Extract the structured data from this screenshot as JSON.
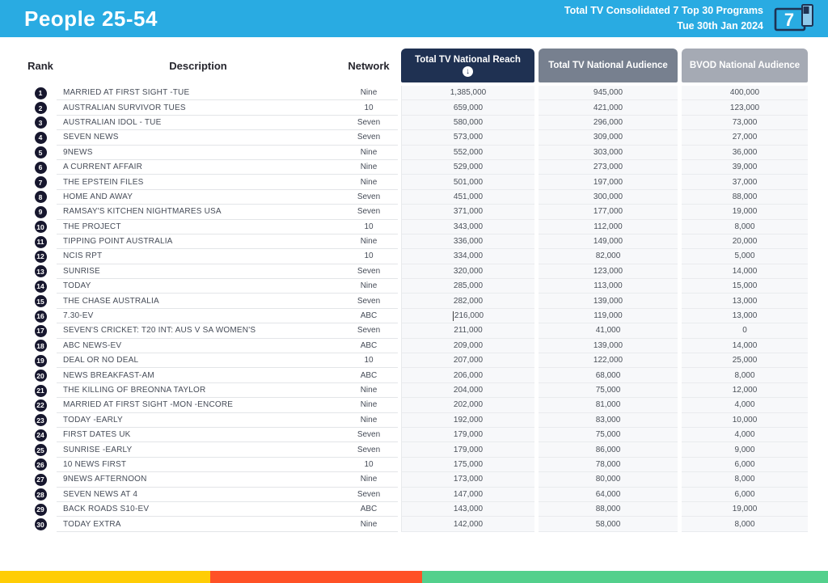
{
  "header": {
    "title": "People 25-54",
    "subtitle_line1": "Total TV Consolidated 7 Top 30 Programs",
    "subtitle_line2": "Tue 30th Jan 2024",
    "logo_digit": "7"
  },
  "colors": {
    "topbar": "#29ABE2",
    "reach_header_bg": "#1F3152",
    "audience_header_bg": "#77808F",
    "bvod_header_bg": "#A5AAB4",
    "stripe_yellow": "#FFCD05",
    "stripe_red": "#FF5126",
    "stripe_green": "#53D08C"
  },
  "table": {
    "columns": {
      "rank": "Rank",
      "description": "Description",
      "network": "Network",
      "reach": "Total TV National Reach",
      "audience": "Total TV National Audience",
      "bvod": "BVOD National Audience"
    },
    "sort_icon": "circle-arrow-down",
    "caret_row_index": 15,
    "rows": [
      {
        "rank": "1",
        "description": "MARRIED AT FIRST SIGHT -TUE",
        "network": "Nine",
        "reach": "1,385,000",
        "audience": "945,000",
        "bvod": "400,000"
      },
      {
        "rank": "2",
        "description": "AUSTRALIAN SURVIVOR TUES",
        "network": "10",
        "reach": "659,000",
        "audience": "421,000",
        "bvod": "123,000"
      },
      {
        "rank": "3",
        "description": "AUSTRALIAN IDOL - TUE",
        "network": "Seven",
        "reach": "580,000",
        "audience": "296,000",
        "bvod": "73,000"
      },
      {
        "rank": "4",
        "description": "SEVEN NEWS",
        "network": "Seven",
        "reach": "573,000",
        "audience": "309,000",
        "bvod": "27,000"
      },
      {
        "rank": "5",
        "description": "9NEWS",
        "network": "Nine",
        "reach": "552,000",
        "audience": "303,000",
        "bvod": "36,000"
      },
      {
        "rank": "6",
        "description": "A CURRENT AFFAIR",
        "network": "Nine",
        "reach": "529,000",
        "audience": "273,000",
        "bvod": "39,000"
      },
      {
        "rank": "7",
        "description": "THE EPSTEIN FILES",
        "network": "Nine",
        "reach": "501,000",
        "audience": "197,000",
        "bvod": "37,000"
      },
      {
        "rank": "8",
        "description": "HOME AND AWAY",
        "network": "Seven",
        "reach": "451,000",
        "audience": "300,000",
        "bvod": "88,000"
      },
      {
        "rank": "9",
        "description": "RAMSAY'S KITCHEN NIGHTMARES USA",
        "network": "Seven",
        "reach": "371,000",
        "audience": "177,000",
        "bvod": "19,000"
      },
      {
        "rank": "10",
        "description": "THE PROJECT",
        "network": "10",
        "reach": "343,000",
        "audience": "112,000",
        "bvod": "8,000"
      },
      {
        "rank": "11",
        "description": "TIPPING POINT AUSTRALIA",
        "network": "Nine",
        "reach": "336,000",
        "audience": "149,000",
        "bvod": "20,000"
      },
      {
        "rank": "12",
        "description": "NCIS RPT",
        "network": "10",
        "reach": "334,000",
        "audience": "82,000",
        "bvod": "5,000"
      },
      {
        "rank": "13",
        "description": "SUNRISE",
        "network": "Seven",
        "reach": "320,000",
        "audience": "123,000",
        "bvod": "14,000"
      },
      {
        "rank": "14",
        "description": "TODAY",
        "network": "Nine",
        "reach": "285,000",
        "audience": "113,000",
        "bvod": "15,000"
      },
      {
        "rank": "15",
        "description": "THE CHASE AUSTRALIA",
        "network": "Seven",
        "reach": "282,000",
        "audience": "139,000",
        "bvod": "13,000"
      },
      {
        "rank": "16",
        "description": "7.30-EV",
        "network": "ABC",
        "reach": "216,000",
        "audience": "119,000",
        "bvod": "13,000"
      },
      {
        "rank": "17",
        "description": "SEVEN'S CRICKET: T20 INT: AUS V SA WOMEN'S",
        "network": "Seven",
        "reach": "211,000",
        "audience": "41,000",
        "bvod": "0"
      },
      {
        "rank": "18",
        "description": "ABC NEWS-EV",
        "network": "ABC",
        "reach": "209,000",
        "audience": "139,000",
        "bvod": "14,000"
      },
      {
        "rank": "19",
        "description": "DEAL OR NO DEAL",
        "network": "10",
        "reach": "207,000",
        "audience": "122,000",
        "bvod": "25,000"
      },
      {
        "rank": "20",
        "description": "NEWS BREAKFAST-AM",
        "network": "ABC",
        "reach": "206,000",
        "audience": "68,000",
        "bvod": "8,000"
      },
      {
        "rank": "21",
        "description": "THE KILLING OF BREONNA TAYLOR",
        "network": "Nine",
        "reach": "204,000",
        "audience": "75,000",
        "bvod": "12,000"
      },
      {
        "rank": "22",
        "description": "MARRIED AT FIRST SIGHT -MON -ENCORE",
        "network": "Nine",
        "reach": "202,000",
        "audience": "81,000",
        "bvod": "4,000"
      },
      {
        "rank": "23",
        "description": "TODAY -EARLY",
        "network": "Nine",
        "reach": "192,000",
        "audience": "83,000",
        "bvod": "10,000"
      },
      {
        "rank": "24",
        "description": "FIRST DATES UK",
        "network": "Seven",
        "reach": "179,000",
        "audience": "75,000",
        "bvod": "4,000"
      },
      {
        "rank": "25",
        "description": "SUNRISE -EARLY",
        "network": "Seven",
        "reach": "179,000",
        "audience": "86,000",
        "bvod": "9,000"
      },
      {
        "rank": "26",
        "description": "10 NEWS FIRST",
        "network": "10",
        "reach": "175,000",
        "audience": "78,000",
        "bvod": "6,000"
      },
      {
        "rank": "27",
        "description": "9NEWS AFTERNOON",
        "network": "Nine",
        "reach": "173,000",
        "audience": "80,000",
        "bvod": "8,000"
      },
      {
        "rank": "28",
        "description": "SEVEN NEWS AT 4",
        "network": "Seven",
        "reach": "147,000",
        "audience": "64,000",
        "bvod": "6,000"
      },
      {
        "rank": "29",
        "description": "BACK ROADS S10-EV",
        "network": "ABC",
        "reach": "143,000",
        "audience": "88,000",
        "bvod": "19,000"
      },
      {
        "rank": "30",
        "description": "TODAY EXTRA",
        "network": "Nine",
        "reach": "142,000",
        "audience": "58,000",
        "bvod": "8,000"
      }
    ]
  }
}
